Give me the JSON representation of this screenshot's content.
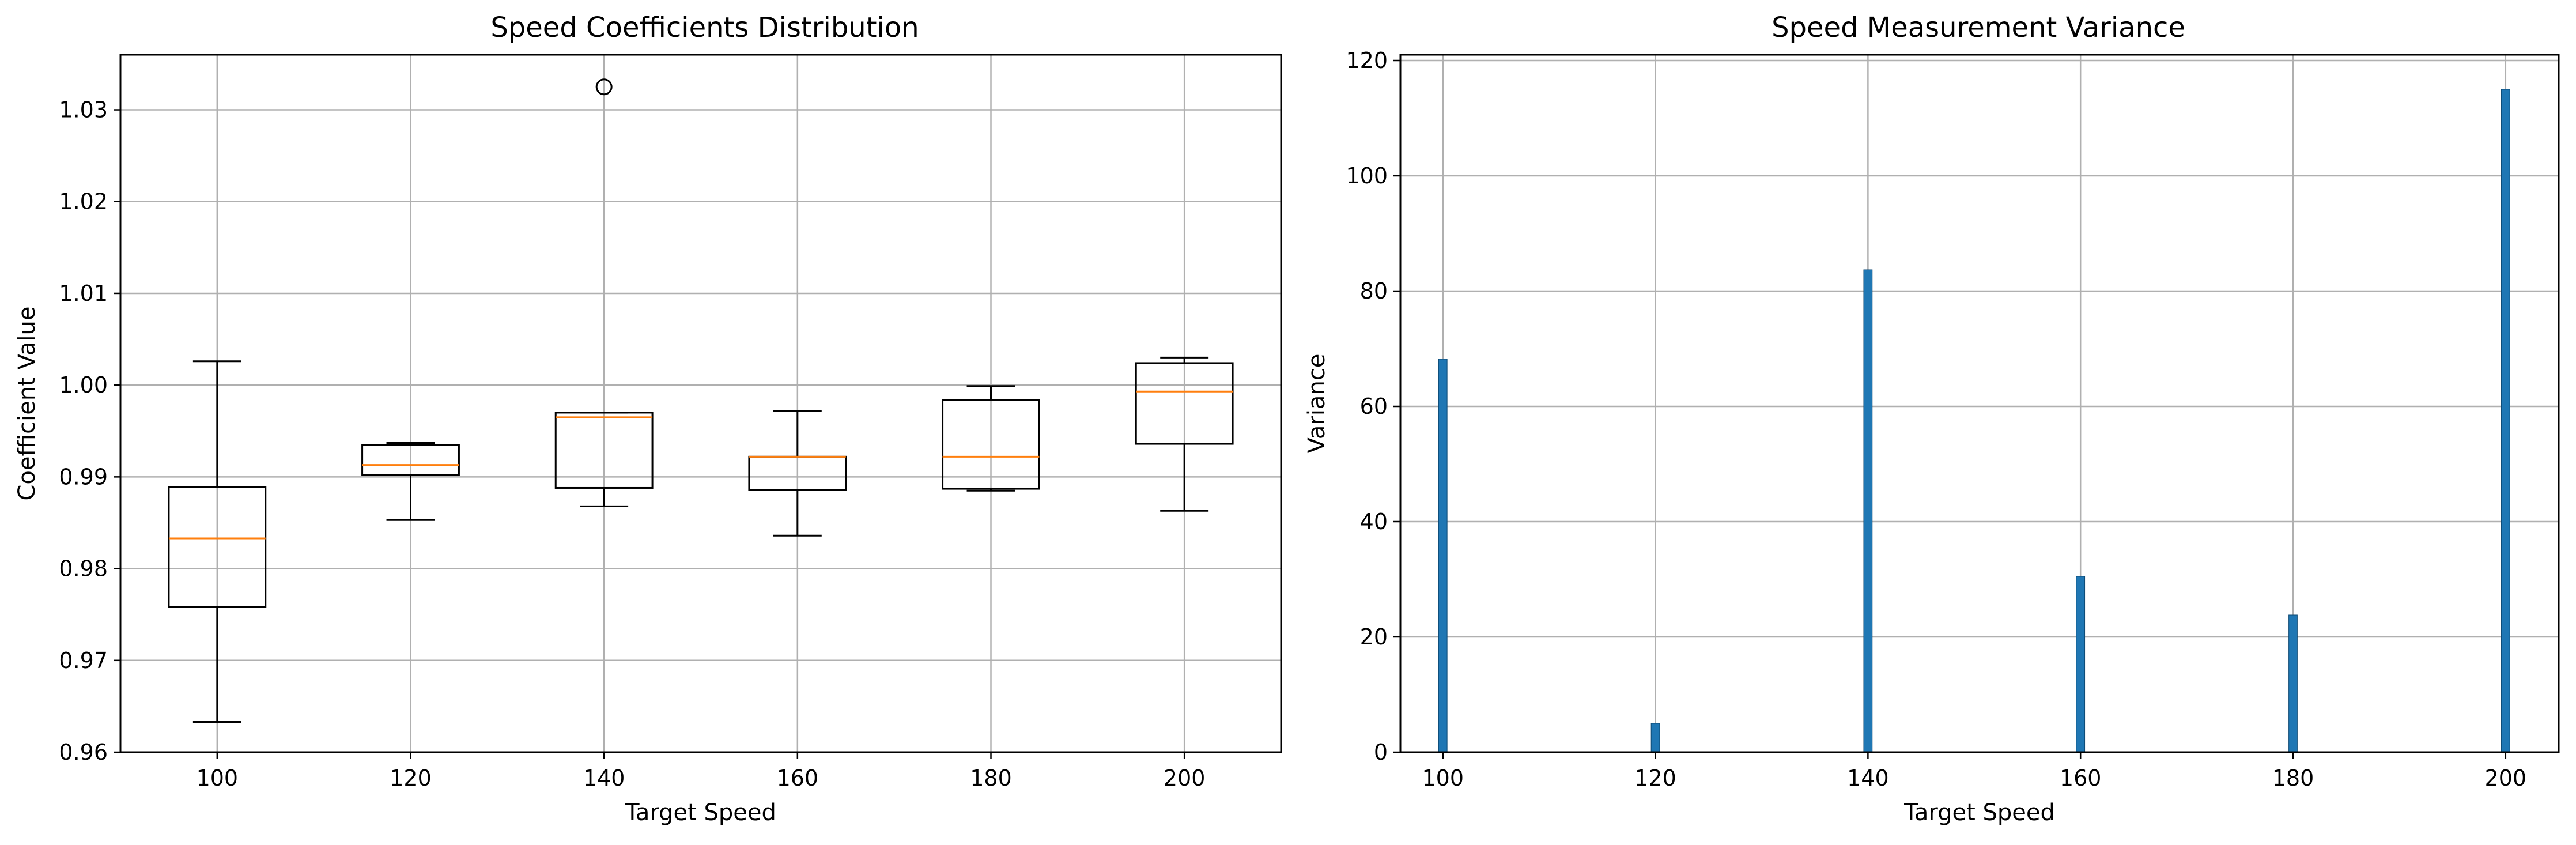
{
  "chart_data": [
    {
      "type": "box",
      "title": "Speed Coefficients Distribution",
      "xlabel": "Target Speed",
      "ylabel": "Coefficient Value",
      "categories": [
        "100",
        "120",
        "140",
        "160",
        "180",
        "200"
      ],
      "boxes": [
        {
          "category": "100",
          "whisker_low": 0.9633,
          "q1": 0.9758,
          "median": 0.9833,
          "q3": 0.9889,
          "whisker_high": 1.0026,
          "outliers": []
        },
        {
          "category": "120",
          "whisker_low": 0.9853,
          "q1": 0.9902,
          "median": 0.9913,
          "q3": 0.9935,
          "whisker_high": 0.9937,
          "outliers": []
        },
        {
          "category": "140",
          "whisker_low": 0.9868,
          "q1": 0.9888,
          "median": 0.9965,
          "q3": 0.997,
          "whisker_high": 0.997,
          "outliers": [
            1.0325
          ]
        },
        {
          "category": "160",
          "whisker_low": 0.9836,
          "q1": 0.9886,
          "median": 0.9922,
          "q3": 0.9922,
          "whisker_high": 0.9972,
          "outliers": []
        },
        {
          "category": "180",
          "whisker_low": 0.9885,
          "q1": 0.9887,
          "median": 0.9922,
          "q3": 0.9984,
          "whisker_high": 0.9999,
          "outliers": []
        },
        {
          "category": "200",
          "whisker_low": 0.9863,
          "q1": 0.9936,
          "median": 0.9993,
          "q3": 1.0024,
          "whisker_high": 1.003,
          "outliers": []
        }
      ],
      "ylim": [
        0.96,
        1.036
      ],
      "yticks": [
        "0.96",
        "0.97",
        "0.98",
        "0.99",
        "1.00",
        "1.01",
        "1.02",
        "1.03"
      ],
      "grid": true,
      "colors": {
        "box": "#000000",
        "median": "#ff7f0e",
        "grid": "#b0b0b0"
      }
    },
    {
      "type": "bar",
      "title": "Speed Measurement Variance",
      "xlabel": "Target Speed",
      "ylabel": "Variance",
      "x": [
        100,
        120,
        140,
        160,
        180,
        200
      ],
      "values": [
        68.2,
        5.0,
        83.7,
        30.5,
        23.8,
        115.0
      ],
      "xticks": [
        "100",
        "120",
        "140",
        "160",
        "180",
        "200"
      ],
      "xlim": [
        96,
        205
      ],
      "ylim": [
        0,
        121
      ],
      "yticks": [
        "0",
        "20",
        "40",
        "60",
        "80",
        "100",
        "120"
      ],
      "grid": true,
      "colors": {
        "bar": "#1f77b4",
        "grid": "#b0b0b0"
      }
    }
  ]
}
